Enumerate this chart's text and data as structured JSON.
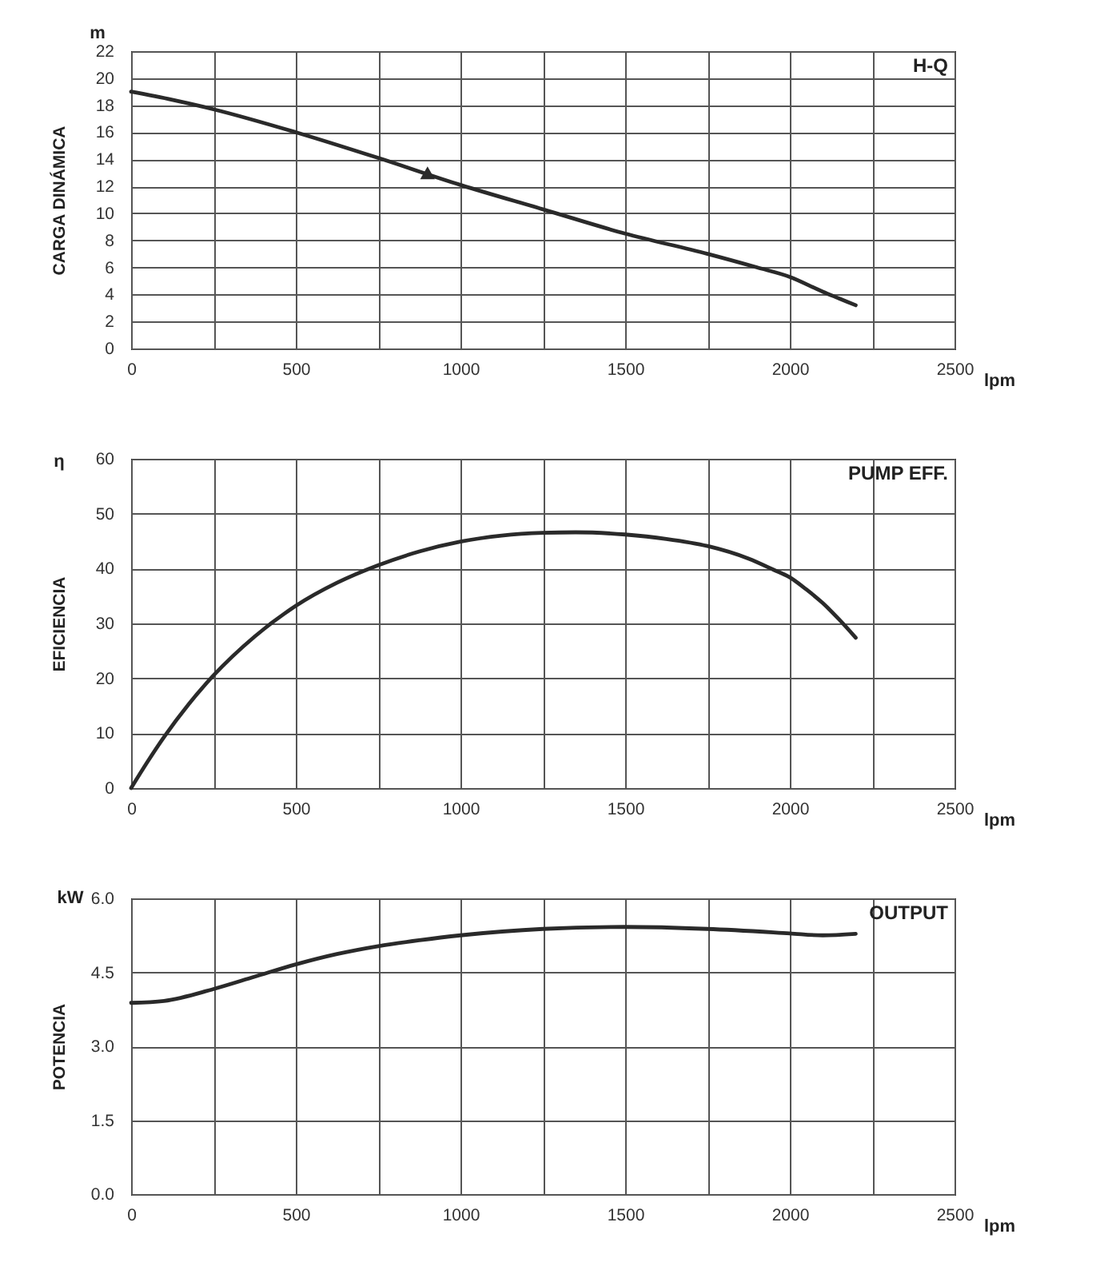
{
  "chart_data": [
    {
      "type": "line",
      "title": "H-Q",
      "xlabel": "lpm",
      "ylabel": "CARGA DINÁMICA",
      "annotations": [
        "m"
      ],
      "xlim": [
        0,
        2500
      ],
      "xticks": [
        0,
        {
          "value": 250,
          "label": null
        },
        500,
        {
          "value": 750,
          "label": null
        },
        1000,
        {
          "value": 1250,
          "label": null
        },
        1500,
        {
          "value": 1750,
          "label": null
        },
        2000,
        {
          "value": 2250,
          "label": null
        },
        2500
      ],
      "ylim": [
        0,
        22
      ],
      "yticks": [
        0,
        2,
        4,
        6,
        8,
        10,
        12,
        14,
        16,
        18,
        20,
        22
      ],
      "grid": true,
      "series": [
        {
          "color": "#2a2a2a",
          "x": [
            0,
            125,
            250,
            500,
            750,
            1000,
            1250,
            1500,
            1750,
            1900,
            2000,
            2100,
            2150,
            2200
          ],
          "values": [
            19.0,
            18.4,
            17.7,
            16.0,
            14.1,
            12.1,
            10.3,
            8.5,
            7.0,
            6.0,
            5.3,
            4.2,
            3.7,
            3.2
          ]
        },
        {
          "type": "scatter",
          "marker": "triangle",
          "color": "#2a2a2a",
          "x": [
            900
          ],
          "values": [
            13
          ]
        }
      ]
    },
    {
      "type": "line",
      "title": "PUMP EFF.",
      "xlabel": "lpm",
      "ylabel": "EFICIENCIA",
      "annotations": [
        "η"
      ],
      "xlim": [
        0,
        2500
      ],
      "xticks": [
        0,
        {
          "value": 250,
          "label": null
        },
        500,
        {
          "value": 750,
          "label": null
        },
        1000,
        {
          "value": 1250,
          "label": null
        },
        1500,
        {
          "value": 1750,
          "label": null
        },
        2000,
        {
          "value": 2250,
          "label": null
        },
        2500
      ],
      "ylim": [
        0,
        60
      ],
      "yticks": [
        0,
        10,
        20,
        30,
        40,
        50,
        60
      ],
      "grid": true,
      "series": [
        {
          "color": "#2a2a2a",
          "x": [
            0,
            50,
            100,
            175,
            250,
            375,
            500,
            625,
            750,
            875,
            1000,
            1125,
            1250,
            1350,
            1500,
            1625,
            1750,
            1875,
            1950,
            2000,
            2050,
            2100,
            2150,
            2200
          ],
          "values": [
            0,
            4.8,
            9.3,
            15.3,
            20.5,
            27.6,
            33.2,
            37.4,
            40.6,
            43.1,
            44.9,
            46.0,
            46.5,
            46.6,
            46.2,
            45.4,
            44.1,
            41.8,
            39.8,
            38.4,
            36.2,
            33.7,
            30.7,
            27.4
          ]
        }
      ]
    },
    {
      "type": "line",
      "title": "OUTPUT",
      "xlabel": "lpm",
      "ylabel": "POTENCIA",
      "annotations": [
        "kW"
      ],
      "xlim": [
        0,
        2500
      ],
      "xticks": [
        0,
        {
          "value": 250,
          "label": null
        },
        500,
        {
          "value": 750,
          "label": null
        },
        1000,
        {
          "value": 1250,
          "label": null
        },
        1500,
        {
          "value": 1750,
          "label": null
        },
        2000,
        {
          "value": 2250,
          "label": null
        },
        2500
      ],
      "ylim": [
        0,
        6
      ],
      "yticks": [
        {
          "value": 0,
          "label": "0.0"
        },
        1.5,
        {
          "value": 3,
          "label": "3.0"
        },
        4.5,
        {
          "value": 6,
          "label": "6.0"
        }
      ],
      "grid": true,
      "series": [
        {
          "color": "#2a2a2a",
          "x": [
            0,
            100,
            250,
            375,
            500,
            625,
            750,
            875,
            1000,
            1250,
            1500,
            1750,
            2000,
            2100,
            2200
          ],
          "values": [
            3.88,
            3.92,
            4.16,
            4.41,
            4.66,
            4.87,
            5.03,
            5.15,
            5.25,
            5.38,
            5.42,
            5.38,
            5.29,
            5.25,
            5.28
          ]
        }
      ]
    }
  ]
}
